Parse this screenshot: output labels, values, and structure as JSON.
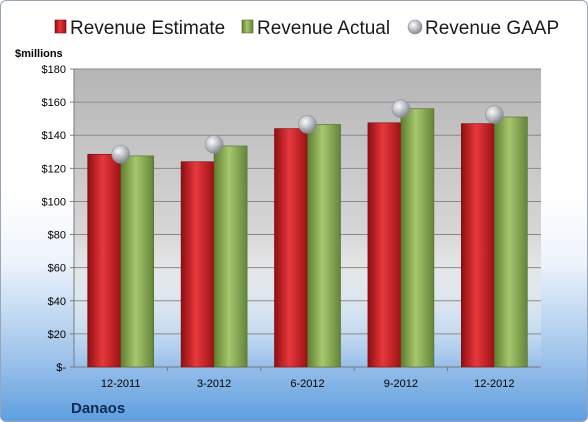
{
  "chart_data": {
    "type": "bar",
    "unit_label": "$millions",
    "company": "Danaos",
    "categories": [
      "12-2011",
      "3-2012",
      "6-2012",
      "9-2012",
      "12-2012"
    ],
    "series": [
      {
        "name": "Revenue Estimate",
        "values": [
          128.5,
          124,
          144,
          147.5,
          147
        ],
        "color": "#d01f24"
      },
      {
        "name": "Revenue Actual",
        "values": [
          127.5,
          133.5,
          146.5,
          156,
          151
        ],
        "color": "#8fb25a"
      },
      {
        "name": "Revenue GAAP",
        "values": [
          128.5,
          134.5,
          146.5,
          156,
          152.5
        ],
        "color": "#b9bdc4"
      }
    ],
    "ylim": [
      0,
      180
    ],
    "yticks": [
      {
        "value": 0,
        "label": "$-"
      },
      {
        "value": 20,
        "label": "$20"
      },
      {
        "value": 40,
        "label": "$40"
      },
      {
        "value": 60,
        "label": "$60"
      },
      {
        "value": 80,
        "label": "$80"
      },
      {
        "value": 100,
        "label": "$100"
      },
      {
        "value": 120,
        "label": "$120"
      },
      {
        "value": 140,
        "label": "$140"
      },
      {
        "value": 160,
        "label": "$160"
      },
      {
        "value": 180,
        "label": "$180"
      }
    ],
    "grid": true,
    "legend_position": "top"
  }
}
